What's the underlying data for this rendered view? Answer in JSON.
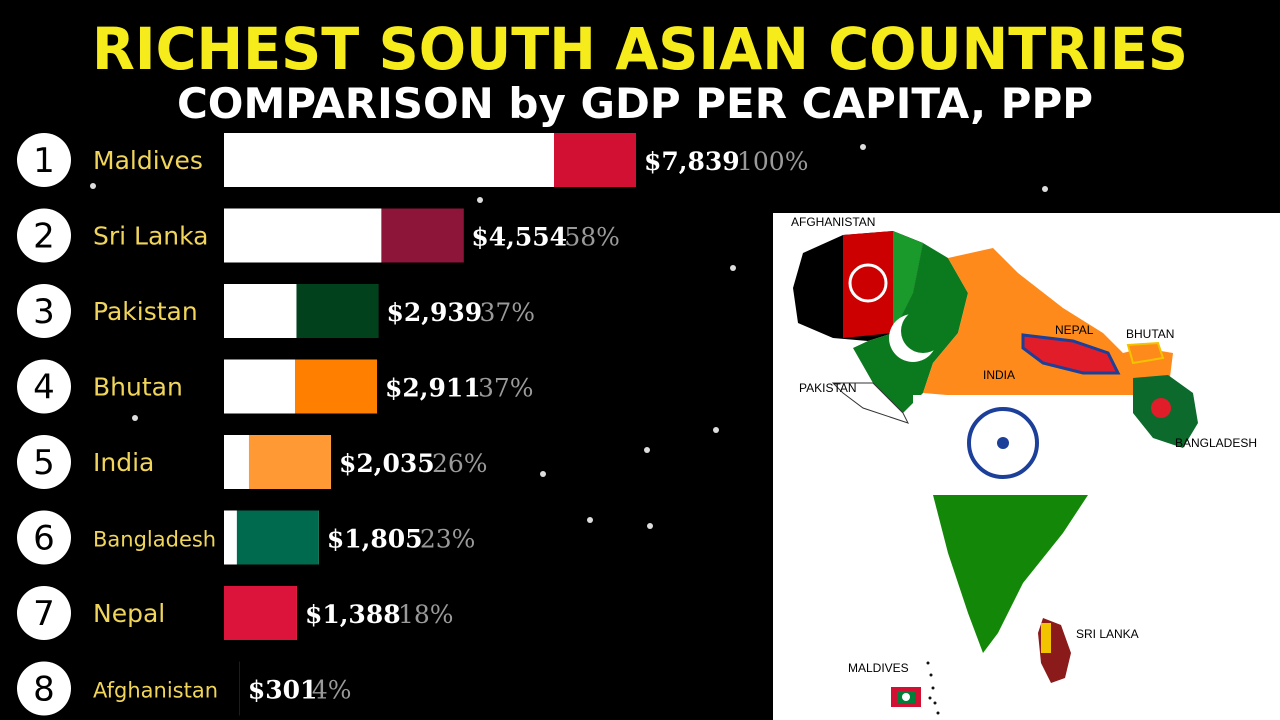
{
  "chart_data": {
    "type": "bar",
    "title": "RICHEST SOUTH ASIAN COUNTRIES",
    "subtitle": "COMPARISON by GDP PER CAPITA, PPP",
    "categories": [
      "Maldives",
      "Sri Lanka",
      "Pakistan",
      "Bhutan",
      "India",
      "Bangladesh",
      "Nepal",
      "Afghanistan"
    ],
    "ranks": [
      "1",
      "2",
      "3",
      "4",
      "5",
      "6",
      "7",
      "8"
    ],
    "values": [
      7839,
      4554,
      2939,
      2911,
      2035,
      1805,
      1388,
      301
    ],
    "value_labels": [
      "$7,839",
      "$4,554",
      "$2,939",
      "$2,911",
      "$2,035",
      "$1,805",
      "$1,388",
      "$301"
    ],
    "percent_labels": [
      "100%",
      "58%",
      "37%",
      "37%",
      "26%",
      "23%",
      "18%",
      "4%"
    ],
    "xlim": [
      0,
      7839
    ],
    "colors": {
      "title": "#f6ec1c",
      "label": "#f0d55a",
      "bar": "#ffffff",
      "percent": "#9a9a9a"
    }
  },
  "map": {
    "labels": {
      "afghanistan": "AFGHANISTAN",
      "pakistan": "PAKISTAN",
      "nepal": "NEPAL",
      "bhutan": "BHUTAN",
      "india": "INDIA",
      "bangladesh": "BANGLADESH",
      "sri_lanka": "SRI LANKA",
      "maldives": "MALDIVES"
    }
  }
}
